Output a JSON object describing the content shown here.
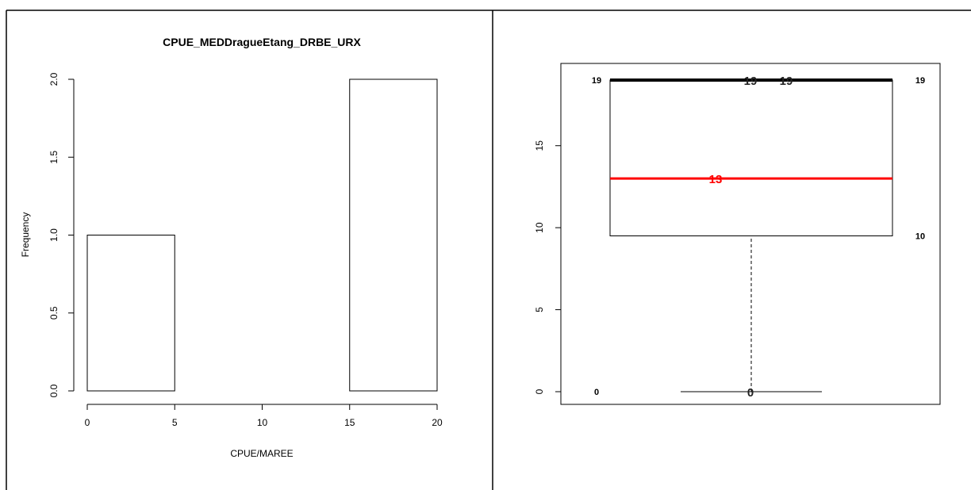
{
  "chart_data": [
    {
      "type": "bar",
      "subtype": "histogram",
      "title": "CPUE_MEDDragueEtang_DRBE_URX",
      "xlabel": "CPUE/MAREE",
      "ylabel": "Frequency",
      "bins": [
        {
          "from": 0,
          "to": 5,
          "count": 1
        },
        {
          "from": 5,
          "to": 10,
          "count": 0
        },
        {
          "from": 10,
          "to": 15,
          "count": 0
        },
        {
          "from": 15,
          "to": 20,
          "count": 2
        }
      ],
      "xlim": [
        0,
        20
      ],
      "ylim": [
        0,
        2
      ],
      "x_ticks": [
        "0",
        "5",
        "10",
        "15",
        "20"
      ],
      "y_ticks": [
        "0.0",
        "0.5",
        "1.0",
        "1.5",
        "2.0"
      ],
      "grid": false
    },
    {
      "type": "box",
      "title": "",
      "stats": {
        "min": 0,
        "q1": 9.5,
        "median": 19,
        "q3": 19,
        "max": 19,
        "mean": 13
      },
      "ylim": [
        0,
        19
      ],
      "y_ticks": [
        "0",
        "5",
        "10",
        "15"
      ],
      "left_labels": [
        {
          "value": 19,
          "text": "19"
        },
        {
          "value": 0,
          "text": "0"
        }
      ],
      "right_labels": [
        {
          "value": 19,
          "text": "19"
        },
        {
          "value": 9.5,
          "text": "10"
        }
      ],
      "inner_labels": [
        {
          "value": 19,
          "text": "19"
        },
        {
          "value": 19,
          "text": "19"
        },
        {
          "value": 13,
          "text": "13",
          "color": "#ff0000"
        },
        {
          "value": 0,
          "text": "0"
        }
      ],
      "mean_color": "#ff0000",
      "grid": false
    }
  ]
}
